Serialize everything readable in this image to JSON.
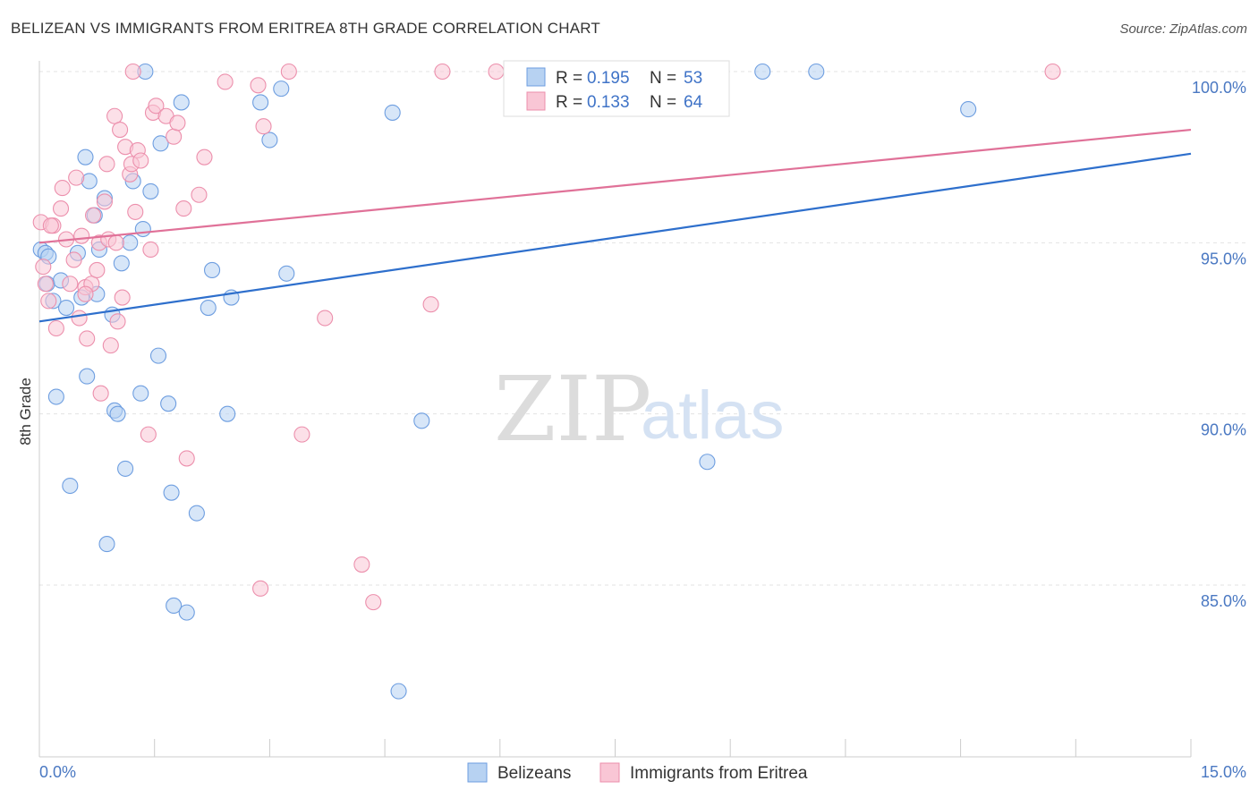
{
  "title": "BELIZEAN VS IMMIGRANTS FROM ERITREA 8TH GRADE CORRELATION CHART",
  "source": "Source: ZipAtlas.com",
  "watermark": {
    "zip": "ZIP",
    "atlas": "atlas"
  },
  "legend": {
    "r_label": "R =",
    "n_label": "N =",
    "entries": [
      {
        "name": "Belizeans",
        "r": "0.195",
        "n": "53",
        "fill": "#b7d2f2",
        "stroke": "#6e9ee0"
      },
      {
        "name": "Immigrants from Eritrea",
        "r": "0.133",
        "n": "64",
        "fill": "#f9c6d5",
        "stroke": "#ec8fac"
      }
    ]
  },
  "chart_data": {
    "type": "scatter",
    "title": "BELIZEAN VS IMMIGRANTS FROM ERITREA 8TH GRADE CORRELATION CHART",
    "xlabel": "",
    "ylabel": "8th Grade",
    "xlim": [
      0,
      15
    ],
    "ylim": [
      80.5,
      100.6
    ],
    "x_ticks": [
      "0.0%",
      "15.0%"
    ],
    "y_ticks": [
      {
        "value": 85,
        "label": "85.0%"
      },
      {
        "value": 90,
        "label": "90.0%"
      },
      {
        "value": 95,
        "label": "95.0%"
      },
      {
        "value": 100,
        "label": "100.0%"
      }
    ],
    "grid": true,
    "legend_position": "top-center",
    "series": [
      {
        "name": "Belizeans",
        "color": "#6e9ee0",
        "fill": "#b7d2f2",
        "line_color": "#2e6fcc",
        "trend": {
          "x": [
            0,
            15
          ],
          "y": [
            92.7,
            97.6
          ]
        },
        "points": [
          [
            0.02,
            94.8
          ],
          [
            0.08,
            94.7
          ],
          [
            0.1,
            93.8
          ],
          [
            0.18,
            93.3
          ],
          [
            0.22,
            90.5
          ],
          [
            0.28,
            93.9
          ],
          [
            0.35,
            93.1
          ],
          [
            0.4,
            87.9
          ],
          [
            0.5,
            94.7
          ],
          [
            0.55,
            93.4
          ],
          [
            0.6,
            97.5
          ],
          [
            0.62,
            91.1
          ],
          [
            0.65,
            96.8
          ],
          [
            0.72,
            95.8
          ],
          [
            0.75,
            93.5
          ],
          [
            0.78,
            94.8
          ],
          [
            0.85,
            96.3
          ],
          [
            0.88,
            86.2
          ],
          [
            0.95,
            92.9
          ],
          [
            0.98,
            90.1
          ],
          [
            1.02,
            90.0
          ],
          [
            1.07,
            94.4
          ],
          [
            1.12,
            88.4
          ],
          [
            1.18,
            95.0
          ],
          [
            1.22,
            96.8
          ],
          [
            1.32,
            90.6
          ],
          [
            1.35,
            95.4
          ],
          [
            1.38,
            100.0
          ],
          [
            1.45,
            96.5
          ],
          [
            1.55,
            91.7
          ],
          [
            1.58,
            97.9
          ],
          [
            1.68,
            90.3
          ],
          [
            1.72,
            87.7
          ],
          [
            1.75,
            84.4
          ],
          [
            1.85,
            99.1
          ],
          [
            1.92,
            84.2
          ],
          [
            2.05,
            87.1
          ],
          [
            2.2,
            93.1
          ],
          [
            2.25,
            94.2
          ],
          [
            2.45,
            90.0
          ],
          [
            2.5,
            93.4
          ],
          [
            2.88,
            99.1
          ],
          [
            3.0,
            98.0
          ],
          [
            3.15,
            99.5
          ],
          [
            3.22,
            94.1
          ],
          [
            4.6,
            98.8
          ],
          [
            4.68,
            81.9
          ],
          [
            4.98,
            89.8
          ],
          [
            8.7,
            88.6
          ],
          [
            9.42,
            100.0
          ],
          [
            10.12,
            100.0
          ],
          [
            12.1,
            98.9
          ],
          [
            0.12,
            94.6
          ]
        ]
      },
      {
        "name": "Immigrants from Eritrea",
        "color": "#ec8fac",
        "fill": "#f9c6d5",
        "line_color": "#e07198",
        "trend": {
          "x": [
            0,
            15
          ],
          "y": [
            95.0,
            98.3
          ]
        },
        "points": [
          [
            0.02,
            95.6
          ],
          [
            0.05,
            94.3
          ],
          [
            0.08,
            93.8
          ],
          [
            0.12,
            93.3
          ],
          [
            0.18,
            95.5
          ],
          [
            0.22,
            92.5
          ],
          [
            0.28,
            96.0
          ],
          [
            0.3,
            96.6
          ],
          [
            0.35,
            95.1
          ],
          [
            0.4,
            93.8
          ],
          [
            0.45,
            94.5
          ],
          [
            0.48,
            96.9
          ],
          [
            0.52,
            92.8
          ],
          [
            0.55,
            95.2
          ],
          [
            0.6,
            93.7
          ],
          [
            0.62,
            92.2
          ],
          [
            0.68,
            93.8
          ],
          [
            0.7,
            95.8
          ],
          [
            0.75,
            94.2
          ],
          [
            0.78,
            95.0
          ],
          [
            0.8,
            90.6
          ],
          [
            0.85,
            96.2
          ],
          [
            0.88,
            97.3
          ],
          [
            0.9,
            95.1
          ],
          [
            0.93,
            92.0
          ],
          [
            0.98,
            98.7
          ],
          [
            1.02,
            92.7
          ],
          [
            1.05,
            98.3
          ],
          [
            1.08,
            93.4
          ],
          [
            1.12,
            97.8
          ],
          [
            1.18,
            97.0
          ],
          [
            1.2,
            97.3
          ],
          [
            1.22,
            100.0
          ],
          [
            1.25,
            95.9
          ],
          [
            1.28,
            97.7
          ],
          [
            1.32,
            97.4
          ],
          [
            1.42,
            89.4
          ],
          [
            1.45,
            94.8
          ],
          [
            1.48,
            98.8
          ],
          [
            1.52,
            99.0
          ],
          [
            1.65,
            98.7
          ],
          [
            1.75,
            98.1
          ],
          [
            1.8,
            98.5
          ],
          [
            1.88,
            96.0
          ],
          [
            1.92,
            88.7
          ],
          [
            2.08,
            96.4
          ],
          [
            2.15,
            97.5
          ],
          [
            2.42,
            99.7
          ],
          [
            2.85,
            99.6
          ],
          [
            2.88,
            84.9
          ],
          [
            2.92,
            98.4
          ],
          [
            3.25,
            100.0
          ],
          [
            3.42,
            89.4
          ],
          [
            3.72,
            92.8
          ],
          [
            4.2,
            85.6
          ],
          [
            4.35,
            84.5
          ],
          [
            5.1,
            93.2
          ],
          [
            5.25,
            100.0
          ],
          [
            5.95,
            100.0
          ],
          [
            6.25,
            100.0
          ],
          [
            13.2,
            100.0
          ],
          [
            0.15,
            95.5
          ],
          [
            1.0,
            95.0
          ],
          [
            0.6,
            93.5
          ]
        ]
      }
    ]
  }
}
